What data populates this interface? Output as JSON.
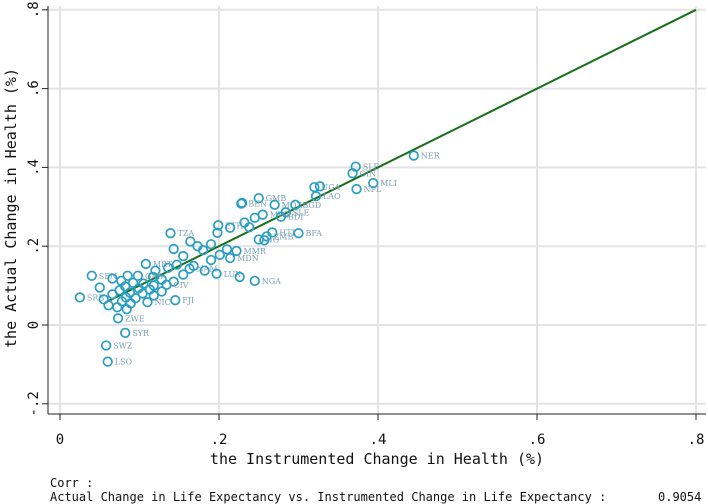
{
  "chart_data": {
    "type": "scatter",
    "xlabel": "the Instrumented Change in Health (%)",
    "ylabel": "the Actual Change in Health (%)",
    "xlim": [
      -0.01,
      0.82
    ],
    "ylim": [
      -0.23,
      0.82
    ],
    "xticks": [
      0,
      0.2,
      0.4,
      0.6,
      0.8
    ],
    "xtick_labels": [
      "0",
      ".2",
      ".4",
      ".6",
      ".8"
    ],
    "yticks": [
      -0.2,
      0,
      0.2,
      0.4,
      0.6,
      0.8
    ],
    "ytick_labels": [
      "-.2",
      "0",
      ".2",
      ".4",
      ".6",
      ".8"
    ],
    "grid": true,
    "marker_color": "#2a9ec2",
    "label_color": "#7aa0b4",
    "fit_color": "#1a6e1a",
    "fit_line": {
      "x": [
        0.06,
        0.8
      ],
      "y": [
        0.06,
        0.8
      ]
    },
    "points": [
      {
        "x": 0.445,
        "y": 0.43,
        "label": "NER"
      },
      {
        "x": 0.372,
        "y": 0.402,
        "label": "SLE"
      },
      {
        "x": 0.368,
        "y": 0.385,
        "label": "GIN"
      },
      {
        "x": 0.394,
        "y": 0.36,
        "label": "MLI"
      },
      {
        "x": 0.373,
        "y": 0.345,
        "label": "NPL"
      },
      {
        "x": 0.32,
        "y": 0.35,
        "label": "UGA"
      },
      {
        "x": 0.327,
        "y": 0.352,
        "label": ""
      },
      {
        "x": 0.322,
        "y": 0.327,
        "label": "LAO"
      },
      {
        "x": 0.25,
        "y": 0.322,
        "label": "GMB"
      },
      {
        "x": 0.228,
        "y": 0.308,
        "label": "BEN"
      },
      {
        "x": 0.229,
        "y": 0.31,
        "label": ""
      },
      {
        "x": 0.27,
        "y": 0.305,
        "label": "MOZ"
      },
      {
        "x": 0.296,
        "y": 0.305,
        "label": "BGD"
      },
      {
        "x": 0.284,
        "y": 0.286,
        "label": "SLE"
      },
      {
        "x": 0.255,
        "y": 0.28,
        "label": "MWI"
      },
      {
        "x": 0.278,
        "y": 0.275,
        "label": "BDI"
      },
      {
        "x": 0.245,
        "y": 0.272,
        "label": ""
      },
      {
        "x": 0.232,
        "y": 0.26,
        "label": ""
      },
      {
        "x": 0.199,
        "y": 0.253,
        "label": "ETH"
      },
      {
        "x": 0.238,
        "y": 0.248,
        "label": ""
      },
      {
        "x": 0.214,
        "y": 0.247,
        "label": ""
      },
      {
        "x": 0.139,
        "y": 0.233,
        "label": "TZA"
      },
      {
        "x": 0.267,
        "y": 0.235,
        "label": "HTI"
      },
      {
        "x": 0.3,
        "y": 0.233,
        "label": "BFA"
      },
      {
        "x": 0.198,
        "y": 0.234,
        "label": ""
      },
      {
        "x": 0.26,
        "y": 0.225,
        "label": "ZMB"
      },
      {
        "x": 0.25,
        "y": 0.217,
        "label": "NG"
      },
      {
        "x": 0.257,
        "y": 0.215,
        "label": ""
      },
      {
        "x": 0.164,
        "y": 0.212,
        "label": ""
      },
      {
        "x": 0.19,
        "y": 0.205,
        "label": ""
      },
      {
        "x": 0.173,
        "y": 0.2,
        "label": ""
      },
      {
        "x": 0.143,
        "y": 0.193,
        "label": ""
      },
      {
        "x": 0.18,
        "y": 0.19,
        "label": ""
      },
      {
        "x": 0.21,
        "y": 0.192,
        "label": ""
      },
      {
        "x": 0.222,
        "y": 0.188,
        "label": "MMR"
      },
      {
        "x": 0.201,
        "y": 0.178,
        "label": ""
      },
      {
        "x": 0.155,
        "y": 0.175,
        "label": ""
      },
      {
        "x": 0.214,
        "y": 0.17,
        "label": "MDN"
      },
      {
        "x": 0.19,
        "y": 0.165,
        "label": ""
      },
      {
        "x": 0.108,
        "y": 0.155,
        "label": "MRT"
      },
      {
        "x": 0.147,
        "y": 0.153,
        "label": ""
      },
      {
        "x": 0.168,
        "y": 0.15,
        "label": ""
      },
      {
        "x": 0.136,
        "y": 0.145,
        "label": ""
      },
      {
        "x": 0.163,
        "y": 0.143,
        "label": "NAM"
      },
      {
        "x": 0.182,
        "y": 0.138,
        "label": ""
      },
      {
        "x": 0.12,
        "y": 0.138,
        "label": ""
      },
      {
        "x": 0.197,
        "y": 0.13,
        "label": "LUX"
      },
      {
        "x": 0.155,
        "y": 0.128,
        "label": ""
      },
      {
        "x": 0.04,
        "y": 0.125,
        "label": "SEN"
      },
      {
        "x": 0.085,
        "y": 0.125,
        "label": ""
      },
      {
        "x": 0.098,
        "y": 0.125,
        "label": "GAB"
      },
      {
        "x": 0.117,
        "y": 0.122,
        "label": ""
      },
      {
        "x": 0.226,
        "y": 0.122,
        "label": ""
      },
      {
        "x": 0.066,
        "y": 0.118,
        "label": ""
      },
      {
        "x": 0.128,
        "y": 0.115,
        "label": ""
      },
      {
        "x": 0.077,
        "y": 0.112,
        "label": ""
      },
      {
        "x": 0.143,
        "y": 0.11,
        "label": ""
      },
      {
        "x": 0.092,
        "y": 0.107,
        "label": ""
      },
      {
        "x": 0.105,
        "y": 0.105,
        "label": ""
      },
      {
        "x": 0.134,
        "y": 0.102,
        "label": "CIV"
      },
      {
        "x": 0.118,
        "y": 0.1,
        "label": ""
      },
      {
        "x": 0.082,
        "y": 0.098,
        "label": ""
      },
      {
        "x": 0.05,
        "y": 0.095,
        "label": ""
      },
      {
        "x": 0.099,
        "y": 0.093,
        "label": ""
      },
      {
        "x": 0.113,
        "y": 0.09,
        "label": ""
      },
      {
        "x": 0.075,
        "y": 0.088,
        "label": ""
      },
      {
        "x": 0.128,
        "y": 0.085,
        "label": ""
      },
      {
        "x": 0.088,
        "y": 0.082,
        "label": ""
      },
      {
        "x": 0.104,
        "y": 0.08,
        "label": ""
      },
      {
        "x": 0.066,
        "y": 0.078,
        "label": ""
      },
      {
        "x": 0.118,
        "y": 0.075,
        "label": ""
      },
      {
        "x": 0.025,
        "y": 0.07,
        "label": "SRB"
      },
      {
        "x": 0.083,
        "y": 0.07,
        "label": ""
      },
      {
        "x": 0.095,
        "y": 0.068,
        "label": ""
      },
      {
        "x": 0.055,
        "y": 0.065,
        "label": ""
      },
      {
        "x": 0.145,
        "y": 0.063,
        "label": "FJI"
      },
      {
        "x": 0.078,
        "y": 0.06,
        "label": ""
      },
      {
        "x": 0.11,
        "y": 0.058,
        "label": "NIC"
      },
      {
        "x": 0.089,
        "y": 0.055,
        "label": ""
      },
      {
        "x": 0.061,
        "y": 0.05,
        "label": ""
      },
      {
        "x": 0.072,
        "y": 0.045,
        "label": ""
      },
      {
        "x": 0.084,
        "y": 0.04,
        "label": ""
      },
      {
        "x": 0.245,
        "y": 0.112,
        "label": "NGA"
      },
      {
        "x": 0.073,
        "y": 0.017,
        "label": "ZWE"
      },
      {
        "x": 0.082,
        "y": -0.02,
        "label": "SYR"
      },
      {
        "x": 0.058,
        "y": -0.052,
        "label": "SWZ"
      },
      {
        "x": 0.06,
        "y": -0.093,
        "label": "LSO"
      }
    ]
  },
  "footer": {
    "corr_label": "Corr :",
    "corr_text": "Actual Change in Life Expectancy vs. Instrumented Change in Life Expectancy :",
    "corr_value": "0.9054"
  }
}
